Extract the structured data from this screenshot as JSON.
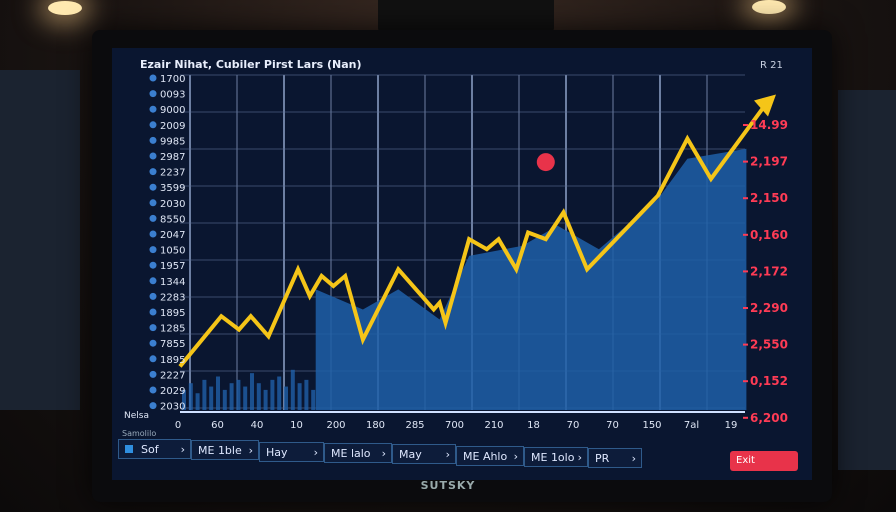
{
  "title": "Ezair Nihat, Cubiler Pirst Lars (Nan)",
  "top_right": "R  21",
  "brand": "SUTSKY",
  "left_labels": [
    "1700",
    "0093",
    "9000",
    "2009",
    "9985",
    "2987",
    "2237",
    "3599",
    "2030",
    "8550",
    "2047",
    "1050",
    "1957",
    "1344",
    "2283",
    "1895",
    "1285",
    "7855",
    "1895",
    "2227",
    "2029",
    "2030"
  ],
  "left_footer": "Nelsa",
  "right_labels": [
    "14.99",
    "2,197",
    "2,150",
    "0,160",
    "2,172",
    "2,290",
    "2,550",
    "0,152",
    "6,200"
  ],
  "bottom_sub": "Samolilo",
  "buttons": [
    "Sof",
    "ME 1ble",
    "Hay",
    "ME lalo",
    "May",
    "ME Ahlo",
    "ME 1olo",
    "PR"
  ],
  "exit_label": "Exit",
  "colors": {
    "line": "#f5c518",
    "area": "#1f5fa8",
    "right_labels": "#ff3b55",
    "marker": "#e8334a"
  },
  "chart_data": {
    "type": "line",
    "title": "Ezair Nihat, Cubiler Pirst Lars (Nan)",
    "x_tick_labels": [
      "0",
      "60",
      "40",
      "10",
      "200",
      "180",
      "285",
      "700",
      "210",
      "18",
      "70",
      "70",
      "150",
      "7al",
      "19"
    ],
    "grid": true,
    "xlim": [
      0,
      100
    ],
    "ylim": [
      0,
      100
    ],
    "series": [
      {
        "type": "line",
        "points": [
          [
            0,
            13
          ],
          [
            7,
            28
          ],
          [
            10,
            24
          ],
          [
            12,
            28
          ],
          [
            15,
            22
          ],
          [
            20,
            42
          ],
          [
            22,
            34
          ],
          [
            24,
            40
          ],
          [
            26,
            37
          ],
          [
            28,
            40
          ],
          [
            31,
            21
          ],
          [
            37,
            42
          ],
          [
            43,
            30
          ],
          [
            44,
            32
          ],
          [
            45,
            26
          ],
          [
            49,
            51
          ],
          [
            52,
            48
          ],
          [
            54,
            51
          ],
          [
            57,
            42
          ],
          [
            59,
            53
          ],
          [
            62,
            51
          ],
          [
            65,
            59
          ],
          [
            69,
            42
          ],
          [
            81,
            64
          ],
          [
            86,
            81
          ],
          [
            90,
            69
          ],
          [
            100,
            93
          ]
        ]
      },
      {
        "type": "area",
        "points": [
          [
            23,
            0
          ],
          [
            23,
            36
          ],
          [
            31,
            30
          ],
          [
            37,
            36
          ],
          [
            44,
            27
          ],
          [
            49,
            46
          ],
          [
            58,
            49
          ],
          [
            64,
            55
          ],
          [
            71,
            48
          ],
          [
            81,
            63
          ],
          [
            86,
            75
          ],
          [
            96,
            78
          ],
          [
            96,
            0
          ]
        ]
      },
      {
        "type": "bar",
        "values": [
          6,
          8,
          5,
          9,
          7,
          10,
          6,
          8,
          9,
          7,
          11,
          8,
          6,
          9,
          10,
          7,
          12,
          8,
          9,
          6
        ]
      }
    ],
    "marker": [
      62,
      74
    ]
  }
}
